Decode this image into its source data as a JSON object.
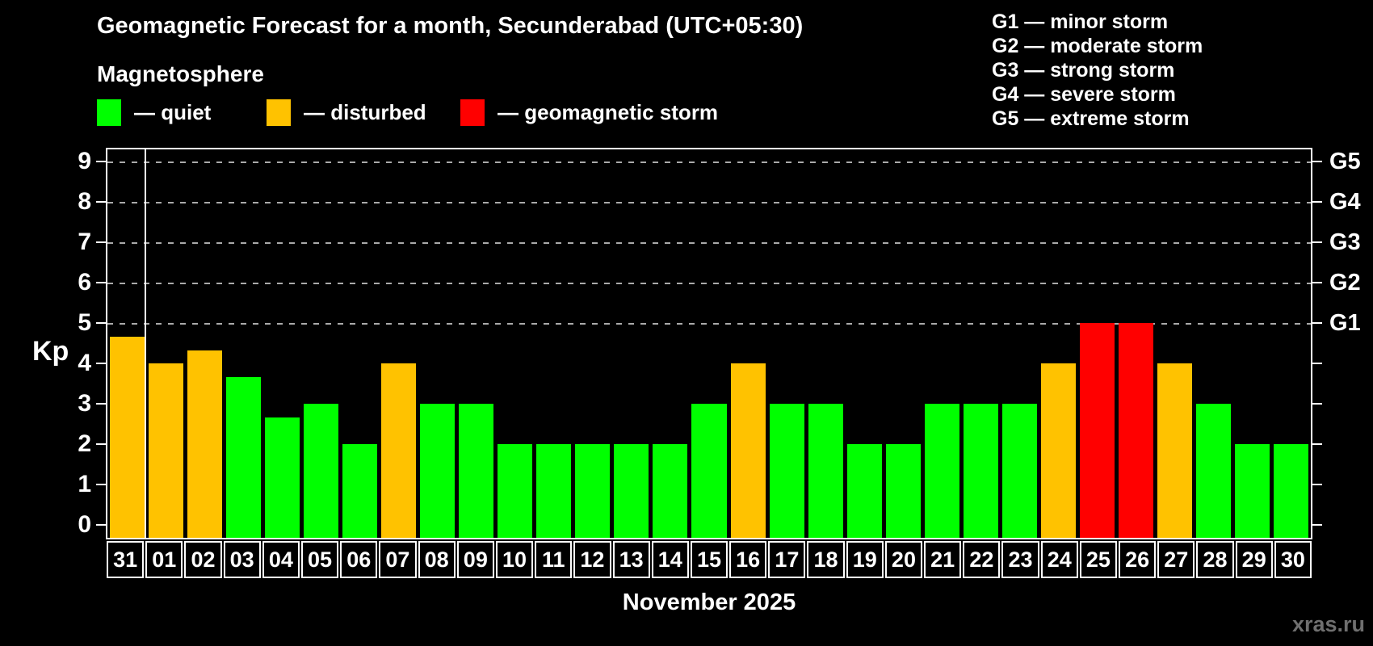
{
  "header": {
    "title": "Geomagnetic Forecast for a month, Secunderabad (UTC+05:30)",
    "subtitle": "Magnetosphere",
    "legend": [
      {
        "name": "quiet",
        "label": "— quiet",
        "color": "#00ff00"
      },
      {
        "name": "disturbed",
        "label": "— disturbed",
        "color": "#ffc200"
      },
      {
        "name": "storm",
        "label": "— geomagnetic storm",
        "color": "#ff0000"
      }
    ],
    "storm_scale": [
      "G1 — minor storm",
      "G2 — moderate storm",
      "G3 — strong storm",
      "G4 — severe storm",
      "G5 — extreme storm"
    ]
  },
  "chart_data": {
    "type": "bar",
    "title": "Geomagnetic Forecast for a month, Secunderabad (UTC+05:30)",
    "ylabel": "Kp",
    "xlabel": "November 2025",
    "ylim": [
      0,
      9.3
    ],
    "yticks": [
      0,
      1,
      2,
      3,
      4,
      5,
      6,
      7,
      8,
      9
    ],
    "gridlines_at_kp": [
      5,
      6,
      7,
      8,
      9
    ],
    "grid": "dashed horizontal at Kp 5-9 only",
    "legend_position": "top",
    "right_axis_labels": [
      {
        "label": "G1",
        "kp": 5
      },
      {
        "label": "G2",
        "kp": 6
      },
      {
        "label": "G3",
        "kp": 7
      },
      {
        "label": "G4",
        "kp": 8
      },
      {
        "label": "G5",
        "kp": 9
      }
    ],
    "month_boundary_after_index": 0,
    "categories": [
      "31",
      "01",
      "02",
      "03",
      "04",
      "05",
      "06",
      "07",
      "08",
      "09",
      "10",
      "11",
      "12",
      "13",
      "14",
      "15",
      "16",
      "17",
      "18",
      "19",
      "20",
      "21",
      "22",
      "23",
      "24",
      "25",
      "26",
      "27",
      "28",
      "29",
      "30"
    ],
    "values": [
      4.67,
      4,
      4.33,
      3.67,
      2.67,
      3,
      2,
      4,
      3,
      3,
      2,
      2,
      2,
      2,
      2,
      3,
      4,
      3,
      3,
      2,
      2,
      3,
      3,
      3,
      4,
      5,
      5,
      4,
      3,
      2,
      2
    ],
    "statuses": [
      "disturbed",
      "disturbed",
      "disturbed",
      "quiet",
      "quiet",
      "quiet",
      "quiet",
      "disturbed",
      "quiet",
      "quiet",
      "quiet",
      "quiet",
      "quiet",
      "quiet",
      "quiet",
      "quiet",
      "disturbed",
      "quiet",
      "quiet",
      "quiet",
      "quiet",
      "quiet",
      "quiet",
      "quiet",
      "disturbed",
      "storm",
      "storm",
      "disturbed",
      "quiet",
      "quiet",
      "quiet"
    ],
    "status_colors": {
      "quiet": "#00ff00",
      "disturbed": "#ffc200",
      "storm": "#ff0000"
    }
  },
  "footer": {
    "month_label": "November 2025",
    "watermark": "xras.ru"
  },
  "colors": {
    "background": "#000000",
    "axis": "#ffffff",
    "grid": "#aaaaaa",
    "watermark": "#6f6f6f"
  }
}
